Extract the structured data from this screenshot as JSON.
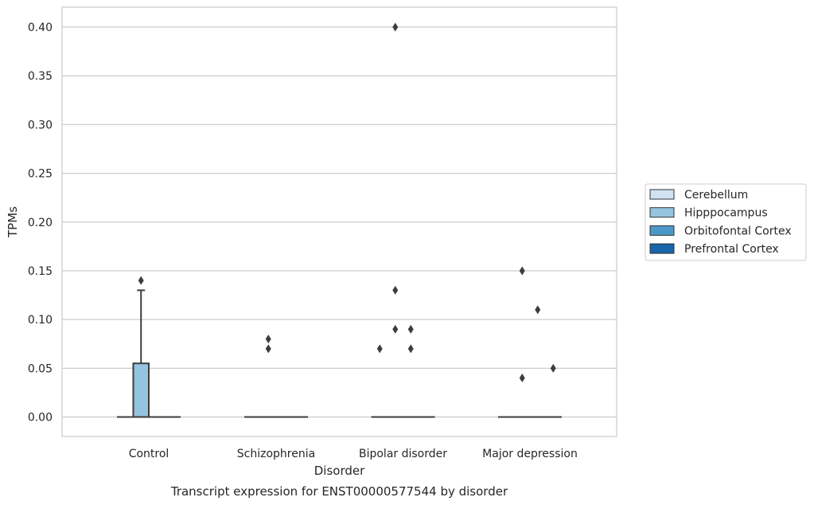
{
  "chart_data": {
    "type": "box",
    "title": "Transcript expression for ENST00000577544 by disorder",
    "xlabel": "Disorder",
    "ylabel": "TPMs",
    "categories": [
      "Control",
      "Schizophrenia",
      "Bipolar disorder",
      "Major depression"
    ],
    "ylim": [
      -0.02,
      0.42
    ],
    "yticks": [
      0.0,
      0.05,
      0.1,
      0.15,
      0.2,
      0.25,
      0.3,
      0.35,
      0.4
    ],
    "ytick_labels": [
      "0.00",
      "0.05",
      "0.10",
      "0.15",
      "0.20",
      "0.25",
      "0.30",
      "0.35",
      "0.40"
    ],
    "grid": "horizontal",
    "legend_position": "right",
    "series": [
      {
        "name": "Cerebellum",
        "color": "#d0e1f2",
        "boxes": [
          {
            "q1": 0,
            "median": 0,
            "q3": 0,
            "whisker_low": 0,
            "whisker_high": 0,
            "outliers": []
          },
          {
            "q1": 0,
            "median": 0,
            "q3": 0,
            "whisker_low": 0,
            "whisker_high": 0,
            "outliers": []
          },
          {
            "q1": 0,
            "median": 0,
            "q3": 0,
            "whisker_low": 0,
            "whisker_high": 0,
            "outliers": [
              0.07
            ]
          },
          {
            "q1": 0,
            "median": 0,
            "q3": 0,
            "whisker_low": 0,
            "whisker_high": 0,
            "outliers": []
          }
        ]
      },
      {
        "name": "Hipppocampus",
        "color": "#94c4df",
        "boxes": [
          {
            "q1": 0,
            "median": 0,
            "q3": 0.055,
            "whisker_low": 0,
            "whisker_high": 0.13,
            "outliers": [
              0.14
            ]
          },
          {
            "q1": 0,
            "median": 0,
            "q3": 0,
            "whisker_low": 0,
            "whisker_high": 0,
            "outliers": [
              0.07,
              0.08
            ]
          },
          {
            "q1": 0,
            "median": 0,
            "q3": 0,
            "whisker_low": 0,
            "whisker_high": 0,
            "outliers": [
              0.09,
              0.13,
              0.4
            ]
          },
          {
            "q1": 0,
            "median": 0,
            "q3": 0,
            "whisker_low": 0,
            "whisker_high": 0,
            "outliers": [
              0.04,
              0.15
            ]
          }
        ]
      },
      {
        "name": "Orbitofontal Cortex",
        "color": "#4a98c9",
        "boxes": [
          {
            "q1": 0,
            "median": 0,
            "q3": 0,
            "whisker_low": 0,
            "whisker_high": 0,
            "outliers": []
          },
          {
            "q1": 0,
            "median": 0,
            "q3": 0,
            "whisker_low": 0,
            "whisker_high": 0,
            "outliers": []
          },
          {
            "q1": 0,
            "median": 0,
            "q3": 0,
            "whisker_low": 0,
            "whisker_high": 0,
            "outliers": [
              0.07,
              0.09
            ]
          },
          {
            "q1": 0,
            "median": 0,
            "q3": 0,
            "whisker_low": 0,
            "whisker_high": 0,
            "outliers": [
              0.11
            ]
          }
        ]
      },
      {
        "name": "Prefrontal Cortex",
        "color": "#1764ab",
        "boxes": [
          {
            "q1": 0,
            "median": 0,
            "q3": 0,
            "whisker_low": 0,
            "whisker_high": 0,
            "outliers": []
          },
          {
            "q1": 0,
            "median": 0,
            "q3": 0,
            "whisker_low": 0,
            "whisker_high": 0,
            "outliers": []
          },
          {
            "q1": 0,
            "median": 0,
            "q3": 0,
            "whisker_low": 0,
            "whisker_high": 0,
            "outliers": []
          },
          {
            "q1": 0,
            "median": 0,
            "q3": 0,
            "whisker_low": 0,
            "whisker_high": 0,
            "outliers": [
              0.05
            ]
          }
        ]
      }
    ]
  }
}
